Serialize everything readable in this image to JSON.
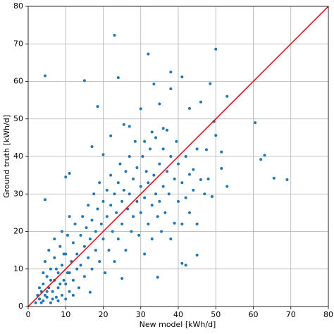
{
  "chart_data": {
    "type": "scatter",
    "x_label": "New model [kWh/d]",
    "y_label": "Ground truth [kWh/d]",
    "color": "#1f77b4",
    "grid": true,
    "identity_line": true,
    "identity_line_color": "#e8000b",
    "xlim": [
      0,
      80
    ],
    "ylim": [
      0,
      80
    ],
    "xticks": [
      0,
      10,
      20,
      30,
      40,
      50,
      60,
      70,
      80
    ],
    "yticks": [
      0,
      10,
      20,
      30,
      40,
      50,
      60,
      70,
      80
    ],
    "x": [
      4.5,
      23,
      32,
      50,
      15,
      24,
      33.5,
      38,
      41,
      48.5,
      18.5,
      30,
      35,
      43,
      46,
      53,
      49.5,
      60.5,
      62,
      63,
      65.5,
      69,
      51.5,
      53,
      49,
      45,
      41,
      42,
      39,
      34.5,
      16.5,
      25,
      17,
      4.5,
      11,
      10,
      20,
      47.5,
      51.5,
      44,
      43,
      46,
      50,
      38,
      25.5,
      27,
      22,
      36,
      33,
      31,
      3,
      3.5,
      4,
      4,
      4.5,
      5,
      5,
      5.5,
      6,
      6,
      6.5,
      7,
      7,
      7.5,
      8,
      8,
      8.5,
      9,
      9,
      9.5,
      10,
      10,
      10.5,
      11,
      11,
      11.5,
      12,
      12,
      12.5,
      13,
      13,
      13.5,
      14,
      14,
      14.5,
      15,
      15,
      15.5,
      16,
      16,
      16.5,
      17,
      17,
      17.5,
      18,
      18,
      18.5,
      19,
      19,
      19.5,
      20,
      20,
      20.5,
      21,
      21,
      21.5,
      22,
      22,
      22.5,
      23,
      23,
      23.5,
      24,
      24,
      24.5,
      25,
      25,
      25.5,
      26,
      26,
      26.5,
      27,
      27,
      27.5,
      28,
      28,
      28.5,
      29,
      29,
      29.5,
      30,
      30,
      30.5,
      31,
      31,
      31.5,
      32,
      32,
      32.5,
      33,
      33,
      33.5,
      34,
      34,
      34.5,
      35,
      35,
      35.5,
      36,
      36,
      36.5,
      37,
      37,
      37.5,
      38,
      38,
      39,
      39.5,
      40,
      40,
      41,
      41,
      42,
      42,
      43,
      44,
      45,
      45,
      47,
      48,
      2,
      2.5,
      3,
      3.5,
      4,
      4.5,
      5,
      5.5,
      6,
      6.5,
      7,
      7.5,
      8,
      8.5,
      9,
      9.5,
      10,
      10.5,
      11,
      12
    ],
    "values": [
      61.5,
      72.3,
      67.3,
      68.6,
      60.2,
      61,
      59.3,
      62.5,
      61.2,
      59.4,
      53.3,
      52.7,
      54,
      52.8,
      54.5,
      56,
      49.3,
      49,
      39.2,
      40.3,
      34.2,
      33.8,
      36.8,
      32,
      29.3,
      13.7,
      11.5,
      11,
      22.2,
      7.8,
      3.8,
      7.5,
      42.6,
      28.5,
      35.5,
      34.5,
      40.5,
      41.8,
      41.2,
      36.5,
      35.2,
      33.8,
      45.6,
      58,
      48.5,
      48,
      45.5,
      47.5,
      46.5,
      44,
      2,
      4,
      1.5,
      6,
      3,
      8,
      2.5,
      5,
      1,
      10,
      4,
      7,
      13,
      2.5,
      9,
      5,
      16,
      11,
      3,
      7,
      14,
      6,
      19,
      9,
      4,
      12,
      17,
      7,
      22,
      10,
      14,
      5,
      19,
      11,
      24,
      8,
      16,
      21,
      13,
      27,
      18,
      10,
      23,
      30,
      15,
      20,
      26,
      12,
      33,
      22,
      18,
      28,
      9,
      24,
      31,
      15,
      27,
      35,
      20,
      30,
      12,
      25,
      33,
      18,
      38,
      28,
      22,
      31,
      36,
      15,
      26,
      40,
      30,
      20,
      34,
      24,
      44,
      28,
      37,
      19,
      32,
      25,
      40,
      14,
      29,
      36,
      22,
      33,
      42,
      27,
      18,
      35,
      30,
      45,
      24,
      38,
      28,
      20,
      42,
      32,
      25,
      36,
      47,
      30,
      40,
      18,
      34,
      44,
      28,
      38,
      33,
      22,
      40,
      29,
      25,
      31,
      42,
      22,
      30,
      34,
      1,
      3,
      5,
      1,
      9,
      12,
      4,
      15,
      7,
      2,
      18,
      10,
      1.5,
      6,
      20,
      14,
      2,
      9,
      24,
      3
    ]
  }
}
